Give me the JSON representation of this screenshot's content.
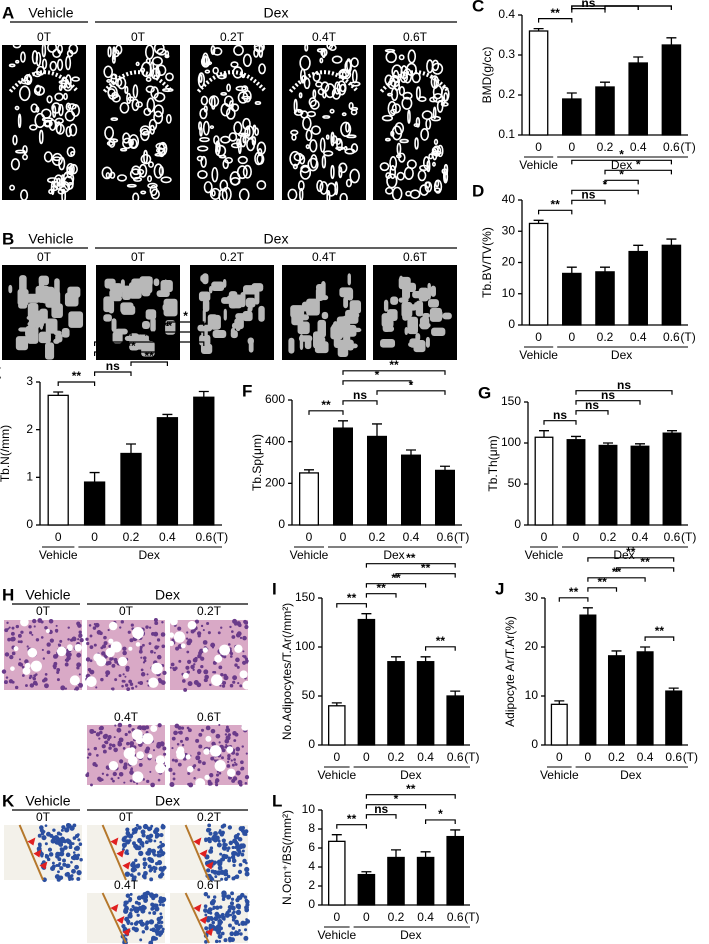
{
  "panels": [
    {
      "letter": "A",
      "groups": [
        "Vehicle",
        "Dex"
      ],
      "images": [
        "0T",
        "0T",
        "0.2T",
        "0.4T",
        "0.6T"
      ]
    },
    {
      "letter": "B",
      "groups": [
        "Vehicle",
        "Dex"
      ],
      "images": [
        "0T",
        "0T",
        "0.2T",
        "0.4T",
        "0.6T"
      ]
    },
    {
      "letter": "H",
      "groups": [
        "Vehicle",
        "Dex"
      ],
      "images": [
        "0T",
        "0T",
        "0.2T",
        "0.4T",
        "0.6T"
      ]
    },
    {
      "letter": "K",
      "groups": [
        "Vehicle",
        "Dex"
      ],
      "images": [
        "0T",
        "0T",
        "0.2T",
        "0.4T",
        "0.6T"
      ]
    }
  ],
  "chart_data": [
    {
      "type": "bar",
      "panel": "C",
      "y_label": "BMD(g/cc)",
      "categories": [
        "0",
        "0",
        "0.2",
        "0.4",
        "0.6"
      ],
      "unit": "(T)",
      "groups": [
        "Vehicle",
        "Dex"
      ],
      "values": [
        0.36,
        0.19,
        0.22,
        0.28,
        0.325
      ],
      "errors": [
        0.006,
        0.015,
        0.012,
        0.015,
        0.018
      ],
      "colors": [
        "#ffffff",
        "#000000",
        "#000000",
        "#000000",
        "#000000"
      ],
      "ylim": [
        0.1,
        0.4
      ],
      "yticks": [
        0.1,
        0.2,
        0.3,
        0.4
      ],
      "comparisons": [
        {
          "from": 0,
          "to": 1,
          "label": "**"
        },
        {
          "from": 1,
          "to": 2,
          "label": "ns"
        },
        {
          "from": 2,
          "to": 3,
          "label": "*"
        },
        {
          "from": 1,
          "to": 3,
          "label": "**"
        },
        {
          "from": 2,
          "to": 4,
          "label": "**"
        },
        {
          "from": 1,
          "to": 4,
          "label": "**"
        }
      ]
    },
    {
      "type": "bar",
      "panel": "D",
      "y_label": "Tb.BV/TV(%)",
      "categories": [
        "0",
        "0",
        "0.2",
        "0.4",
        "0.6"
      ],
      "unit": "(T)",
      "groups": [
        "Vehicle",
        "Dex"
      ],
      "values": [
        32.5,
        16.5,
        17,
        23.5,
        25.5
      ],
      "errors": [
        1,
        2,
        1.5,
        2,
        2
      ],
      "colors": [
        "#ffffff",
        "#000000",
        "#000000",
        "#000000",
        "#000000"
      ],
      "ylim": [
        0,
        40
      ],
      "yticks": [
        0,
        10,
        20,
        30,
        40
      ],
      "comparisons": [
        {
          "from": 0,
          "to": 1,
          "label": "**"
        },
        {
          "from": 1,
          "to": 2,
          "label": "ns"
        },
        {
          "from": 1,
          "to": 3,
          "label": "*"
        },
        {
          "from": 2,
          "to": 3,
          "label": "*"
        },
        {
          "from": 2,
          "to": 4,
          "label": "*"
        },
        {
          "from": 1,
          "to": 4,
          "label": "*"
        }
      ]
    },
    {
      "type": "bar",
      "panel": "E",
      "y_label": "Tb.N(/mm)",
      "categories": [
        "0",
        "0",
        "0.2",
        "0.4",
        "0.6"
      ],
      "unit": "(T)",
      "groups": [
        "Vehicle",
        "Dex"
      ],
      "values": [
        2.72,
        0.9,
        1.5,
        2.25,
        2.68
      ],
      "errors": [
        0.07,
        0.2,
        0.2,
        0.07,
        0.12
      ],
      "colors": [
        "#ffffff",
        "#000000",
        "#000000",
        "#000000",
        "#000000"
      ],
      "ylim": [
        0,
        3
      ],
      "yticks": [
        0,
        1,
        2,
        3
      ],
      "comparisons": [
        {
          "from": 0,
          "to": 1,
          "label": "**"
        },
        {
          "from": 1,
          "to": 2,
          "label": "ns"
        },
        {
          "from": 2,
          "to": 3,
          "label": "**"
        },
        {
          "from": 1,
          "to": 3,
          "label": "**"
        },
        {
          "from": 1,
          "to": 4,
          "label": "**"
        },
        {
          "from": 2,
          "to": 4,
          "label": "**"
        },
        {
          "from": 3,
          "to": 4,
          "label": "*"
        }
      ]
    },
    {
      "type": "bar",
      "panel": "F",
      "y_label": "Tb.Sp(μm)",
      "categories": [
        "0",
        "0",
        "0.2",
        "0.4",
        "0.6"
      ],
      "unit": "(T)",
      "groups": [
        "Vehicle",
        "Dex"
      ],
      "values": [
        250,
        465,
        425,
        335,
        262
      ],
      "errors": [
        15,
        35,
        60,
        25,
        20
      ],
      "colors": [
        "#ffffff",
        "#000000",
        "#000000",
        "#000000",
        "#000000"
      ],
      "ylim": [
        0,
        600
      ],
      "yticks": [
        0,
        200,
        400,
        600
      ],
      "comparisons": [
        {
          "from": 0,
          "to": 1,
          "label": "**"
        },
        {
          "from": 1,
          "to": 2,
          "label": "ns"
        },
        {
          "from": 2,
          "to": 4,
          "label": "*"
        },
        {
          "from": 1,
          "to": 3,
          "label": "*"
        },
        {
          "from": 1,
          "to": 4,
          "label": "**"
        }
      ]
    },
    {
      "type": "bar",
      "panel": "G",
      "y_label": "Tb.Th(μm)",
      "categories": [
        "0",
        "0",
        "0.2",
        "0.4",
        "0.6"
      ],
      "unit": "(T)",
      "groups": [
        "Vehicle",
        "Dex"
      ],
      "values": [
        107,
        104,
        97,
        96,
        112
      ],
      "errors": [
        8,
        4,
        3,
        3,
        3
      ],
      "colors": [
        "#ffffff",
        "#000000",
        "#000000",
        "#000000",
        "#000000"
      ],
      "ylim": [
        0,
        150
      ],
      "yticks": [
        0,
        50,
        100,
        150
      ],
      "comparisons": [
        {
          "from": 0,
          "to": 1,
          "label": "ns"
        },
        {
          "from": 1,
          "to": 2,
          "label": "ns"
        },
        {
          "from": 1,
          "to": 3,
          "label": "ns"
        },
        {
          "from": 1,
          "to": 4,
          "label": "ns"
        }
      ]
    },
    {
      "type": "bar",
      "panel": "I",
      "y_label": "No.Adipocytes/T.Ar(/mm²)",
      "categories": [
        "0",
        "0",
        "0.2",
        "0.4",
        "0.6"
      ],
      "unit": "(T)",
      "groups": [
        "Vehicle",
        "Dex"
      ],
      "values": [
        40,
        128,
        85,
        85,
        50
      ],
      "errors": [
        3,
        6,
        5,
        5,
        5
      ],
      "colors": [
        "#ffffff",
        "#000000",
        "#000000",
        "#000000",
        "#000000"
      ],
      "ylim": [
        0,
        150
      ],
      "yticks": [
        0,
        50,
        100,
        150
      ],
      "comparisons": [
        {
          "from": 0,
          "to": 1,
          "label": "**"
        },
        {
          "from": 1,
          "to": 2,
          "label": "**"
        },
        {
          "from": 3,
          "to": 4,
          "label": "**"
        },
        {
          "from": 1,
          "to": 3,
          "label": "**"
        },
        {
          "from": 2,
          "to": 4,
          "label": "**"
        },
        {
          "from": 1,
          "to": 4,
          "label": "**"
        }
      ]
    },
    {
      "type": "bar",
      "panel": "J",
      "y_label": "Adipocyte Ar/T.Ar(%)",
      "categories": [
        "0",
        "0",
        "0.2",
        "0.4",
        "0.6"
      ],
      "unit": "(T)",
      "groups": [
        "Vehicle",
        "Dex"
      ],
      "values": [
        8.3,
        26.5,
        18.2,
        19,
        11
      ],
      "errors": [
        0.7,
        1.5,
        1,
        1,
        0.6
      ],
      "colors": [
        "#ffffff",
        "#000000",
        "#000000",
        "#000000",
        "#000000"
      ],
      "ylim": [
        0,
        30
      ],
      "yticks": [
        0,
        10,
        20,
        30
      ],
      "comparisons": [
        {
          "from": 0,
          "to": 1,
          "label": "**"
        },
        {
          "from": 1,
          "to": 2,
          "label": "**"
        },
        {
          "from": 3,
          "to": 4,
          "label": "**"
        },
        {
          "from": 1,
          "to": 3,
          "label": "**"
        },
        {
          "from": 2,
          "to": 4,
          "label": "**"
        },
        {
          "from": 1,
          "to": 4,
          "label": "**"
        }
      ]
    },
    {
      "type": "bar",
      "panel": "L",
      "y_label": "N.Ocn⁺/BS(/mm²)",
      "categories": [
        "0",
        "0",
        "0.2",
        "0.4",
        "0.6"
      ],
      "unit": "(T)",
      "groups": [
        "Vehicle",
        "Dex"
      ],
      "values": [
        6.7,
        3.2,
        5,
        5,
        7.2
      ],
      "errors": [
        0.7,
        0.3,
        0.8,
        0.6,
        0.7
      ],
      "colors": [
        "#ffffff",
        "#000000",
        "#000000",
        "#000000",
        "#000000"
      ],
      "ylim": [
        0,
        10
      ],
      "yticks": [
        0,
        2,
        4,
        6,
        8,
        10
      ],
      "comparisons": [
        {
          "from": 0,
          "to": 1,
          "label": "**"
        },
        {
          "from": 1,
          "to": 2,
          "label": "ns"
        },
        {
          "from": 3,
          "to": 4,
          "label": "*"
        },
        {
          "from": 1,
          "to": 3,
          "label": "*"
        },
        {
          "from": 1,
          "to": 4,
          "label": "**"
        }
      ]
    }
  ]
}
